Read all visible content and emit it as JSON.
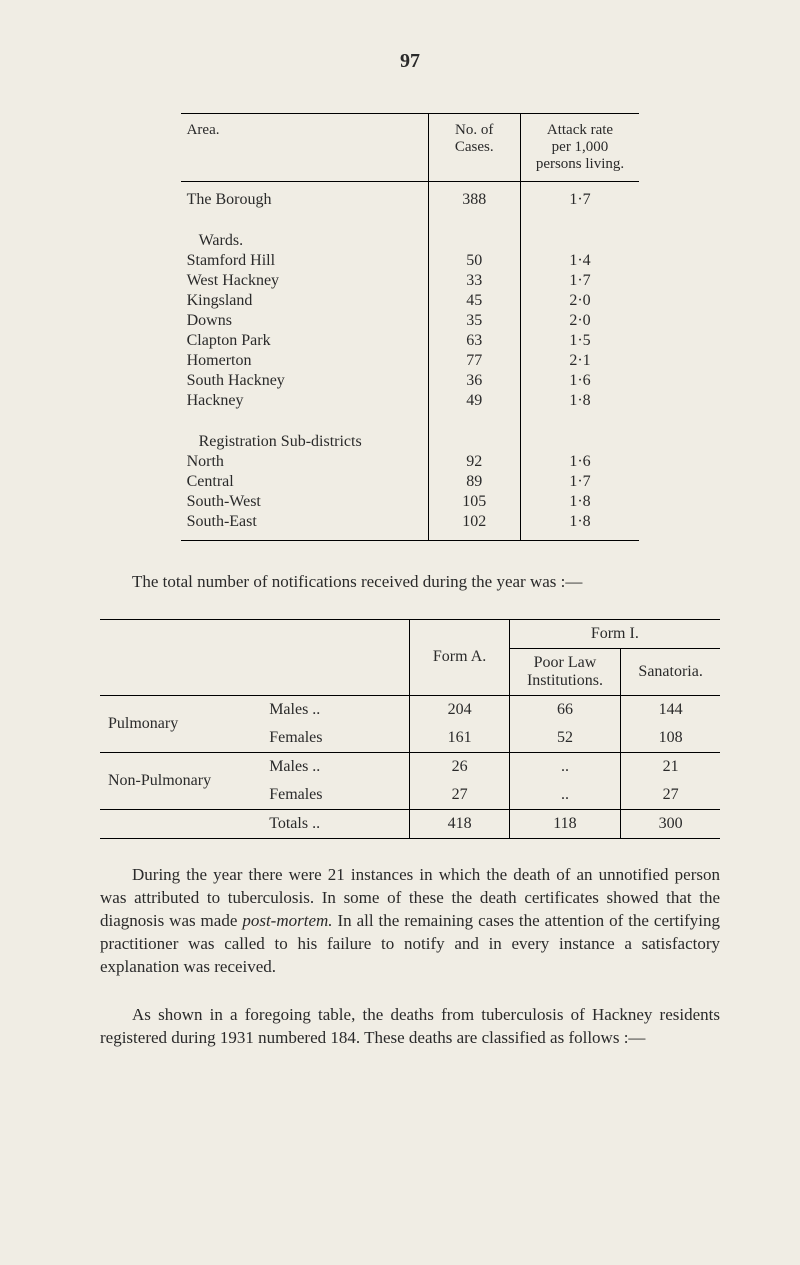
{
  "page_number": "97",
  "table1": {
    "headers": {
      "area": "Area.",
      "cases": "No. of\nCases.",
      "rate": "Attack rate\nper 1,000\npersons living."
    },
    "borough_row": {
      "label": "The Borough",
      "cases": "388",
      "rate": "1·7"
    },
    "wards_heading": "Wards.",
    "wards": [
      {
        "label": "Stamford Hill",
        "cases": "50",
        "rate": "1·4"
      },
      {
        "label": "West Hackney",
        "cases": "33",
        "rate": "1·7"
      },
      {
        "label": "Kingsland",
        "cases": "45",
        "rate": "2·0"
      },
      {
        "label": "Downs",
        "cases": "35",
        "rate": "2·0"
      },
      {
        "label": "Clapton Park",
        "cases": "63",
        "rate": "1·5"
      },
      {
        "label": "Homerton",
        "cases": "77",
        "rate": "2·1"
      },
      {
        "label": "South Hackney",
        "cases": "36",
        "rate": "1·6"
      },
      {
        "label": "Hackney",
        "cases": "49",
        "rate": "1·8"
      }
    ],
    "reg_heading": "Registration Sub-districts",
    "registration": [
      {
        "label": "North",
        "cases": "92",
        "rate": "1·6"
      },
      {
        "label": "Central",
        "cases": "89",
        "rate": "1·7"
      },
      {
        "label": "South-West",
        "cases": "105",
        "rate": "1·8"
      },
      {
        "label": "South-East",
        "cases": "102",
        "rate": "1·8"
      }
    ]
  },
  "para_mid": "The total number of notifications received during the year was :—",
  "table2": {
    "headers": {
      "formA": "Form A.",
      "formI": "Form I.",
      "poorlaw": "Poor Law\nInstitutions.",
      "sanatoria": "Sanatoria."
    },
    "rows": [
      {
        "group": "Pulmonary",
        "sub": "Males",
        "a": "204",
        "b": "66",
        "c": "144"
      },
      {
        "group": "",
        "sub": "Females",
        "a": "161",
        "b": "52",
        "c": "108"
      },
      {
        "group": "Non-Pulmonary",
        "sub": "Males",
        "a": "26",
        "b": "..",
        "c": "21"
      },
      {
        "group": "",
        "sub": "Females",
        "a": "27",
        "b": "..",
        "c": "27"
      }
    ],
    "totals": {
      "label": "Totals",
      "a": "418",
      "b": "118",
      "c": "300"
    }
  },
  "para_1": "During the year there were 21 instances in which the death of an unnotified person was attributed to tuberculosis. In some of these the death certificates showed that the diagnosis was made",
  "para_1_ital": "post-mortem.",
  "para_1_cont": " In all the remaining cases the attention of the certifying practitioner was called to his failure to notify and in every instance a satisfactory explanation was received.",
  "para_2": "As shown in a foregoing table, the deaths from tuberculosis of Hackney residents registered during 1931 numbered 184. These deaths are classified as follows :—"
}
